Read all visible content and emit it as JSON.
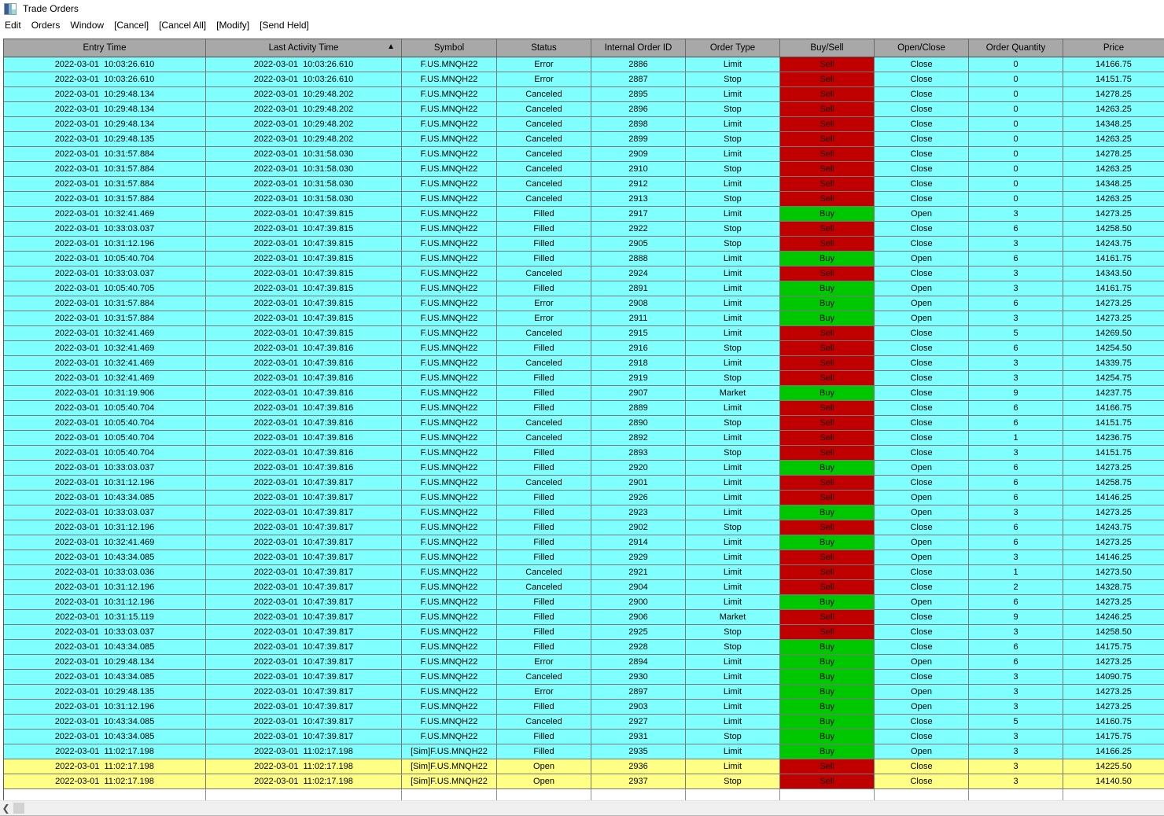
{
  "window": {
    "title": "Trade Orders"
  },
  "menu": {
    "items": [
      "Edit",
      "Orders",
      "Window",
      "[Cancel]",
      "[Cancel All]",
      "[Modify]",
      "[Send Held]"
    ]
  },
  "colors": {
    "row_cyan": "#80FFFF",
    "row_yellow": "#FFFF85",
    "sell_red": "#C00000",
    "buy_green": "#00C800",
    "header_gray": "#A8A8A8"
  },
  "table": {
    "columns": [
      "Entry Time",
      "Last Activity Time",
      "Symbol",
      "Status",
      "Internal Order ID",
      "Order Type",
      "Buy/Sell",
      "Open/Close",
      "Order Quantity",
      "Price"
    ],
    "sort": {
      "column": "Last Activity Time",
      "direction": "ascending",
      "indicator": "▲"
    },
    "row_fields": [
      "entry_time",
      "last_activity_time",
      "symbol",
      "status",
      "internal_order_id",
      "order_type",
      "buy_sell",
      "open_close",
      "order_quantity",
      "price",
      "row_highlight"
    ],
    "rows": [
      [
        "2022-03-01  10:03:26.610",
        "2022-03-01  10:03:26.610",
        "F.US.MNQH22",
        "Error",
        "2886",
        "Limit",
        "Sell",
        "Close",
        "0",
        "14166.75",
        "cyan"
      ],
      [
        "2022-03-01  10:03:26.610",
        "2022-03-01  10:03:26.610",
        "F.US.MNQH22",
        "Error",
        "2887",
        "Stop",
        "Sell",
        "Close",
        "0",
        "14151.75",
        "cyan"
      ],
      [
        "2022-03-01  10:29:48.134",
        "2022-03-01  10:29:48.202",
        "F.US.MNQH22",
        "Canceled",
        "2895",
        "Limit",
        "Sell",
        "Close",
        "0",
        "14278.25",
        "cyan"
      ],
      [
        "2022-03-01  10:29:48.134",
        "2022-03-01  10:29:48.202",
        "F.US.MNQH22",
        "Canceled",
        "2896",
        "Stop",
        "Sell",
        "Close",
        "0",
        "14263.25",
        "cyan"
      ],
      [
        "2022-03-01  10:29:48.134",
        "2022-03-01  10:29:48.202",
        "F.US.MNQH22",
        "Canceled",
        "2898",
        "Limit",
        "Sell",
        "Close",
        "0",
        "14348.25",
        "cyan"
      ],
      [
        "2022-03-01  10:29:48.135",
        "2022-03-01  10:29:48.202",
        "F.US.MNQH22",
        "Canceled",
        "2899",
        "Stop",
        "Sell",
        "Close",
        "0",
        "14263.25",
        "cyan"
      ],
      [
        "2022-03-01  10:31:57.884",
        "2022-03-01  10:31:58.030",
        "F.US.MNQH22",
        "Canceled",
        "2909",
        "Limit",
        "Sell",
        "Close",
        "0",
        "14278.25",
        "cyan"
      ],
      [
        "2022-03-01  10:31:57.884",
        "2022-03-01  10:31:58.030",
        "F.US.MNQH22",
        "Canceled",
        "2910",
        "Stop",
        "Sell",
        "Close",
        "0",
        "14263.25",
        "cyan"
      ],
      [
        "2022-03-01  10:31:57.884",
        "2022-03-01  10:31:58.030",
        "F.US.MNQH22",
        "Canceled",
        "2912",
        "Limit",
        "Sell",
        "Close",
        "0",
        "14348.25",
        "cyan"
      ],
      [
        "2022-03-01  10:31:57.884",
        "2022-03-01  10:31:58.030",
        "F.US.MNQH22",
        "Canceled",
        "2913",
        "Stop",
        "Sell",
        "Close",
        "0",
        "14263.25",
        "cyan"
      ],
      [
        "2022-03-01  10:32:41.469",
        "2022-03-01  10:47:39.815",
        "F.US.MNQH22",
        "Filled",
        "2917",
        "Limit",
        "Buy",
        "Open",
        "3",
        "14273.25",
        "cyan"
      ],
      [
        "2022-03-01  10:33:03.037",
        "2022-03-01  10:47:39.815",
        "F.US.MNQH22",
        "Filled",
        "2922",
        "Stop",
        "Sell",
        "Close",
        "6",
        "14258.50",
        "cyan"
      ],
      [
        "2022-03-01  10:31:12.196",
        "2022-03-01  10:47:39.815",
        "F.US.MNQH22",
        "Filled",
        "2905",
        "Stop",
        "Sell",
        "Close",
        "3",
        "14243.75",
        "cyan"
      ],
      [
        "2022-03-01  10:05:40.704",
        "2022-03-01  10:47:39.815",
        "F.US.MNQH22",
        "Filled",
        "2888",
        "Limit",
        "Buy",
        "Open",
        "6",
        "14161.75",
        "cyan"
      ],
      [
        "2022-03-01  10:33:03.037",
        "2022-03-01  10:47:39.815",
        "F.US.MNQH22",
        "Canceled",
        "2924",
        "Limit",
        "Sell",
        "Close",
        "3",
        "14343.50",
        "cyan"
      ],
      [
        "2022-03-01  10:05:40.705",
        "2022-03-01  10:47:39.815",
        "F.US.MNQH22",
        "Filled",
        "2891",
        "Limit",
        "Buy",
        "Open",
        "3",
        "14161.75",
        "cyan"
      ],
      [
        "2022-03-01  10:31:57.884",
        "2022-03-01  10:47:39.815",
        "F.US.MNQH22",
        "Error",
        "2908",
        "Limit",
        "Buy",
        "Open",
        "6",
        "14273.25",
        "cyan"
      ],
      [
        "2022-03-01  10:31:57.884",
        "2022-03-01  10:47:39.815",
        "F.US.MNQH22",
        "Error",
        "2911",
        "Limit",
        "Buy",
        "Open",
        "3",
        "14273.25",
        "cyan"
      ],
      [
        "2022-03-01  10:32:41.469",
        "2022-03-01  10:47:39.815",
        "F.US.MNQH22",
        "Canceled",
        "2915",
        "Limit",
        "Sell",
        "Close",
        "5",
        "14269.50",
        "cyan"
      ],
      [
        "2022-03-01  10:32:41.469",
        "2022-03-01  10:47:39.816",
        "F.US.MNQH22",
        "Filled",
        "2916",
        "Stop",
        "Sell",
        "Close",
        "6",
        "14254.50",
        "cyan"
      ],
      [
        "2022-03-01  10:32:41.469",
        "2022-03-01  10:47:39.816",
        "F.US.MNQH22",
        "Canceled",
        "2918",
        "Limit",
        "Sell",
        "Close",
        "3",
        "14339.75",
        "cyan"
      ],
      [
        "2022-03-01  10:32:41.469",
        "2022-03-01  10:47:39.816",
        "F.US.MNQH22",
        "Filled",
        "2919",
        "Stop",
        "Sell",
        "Close",
        "3",
        "14254.75",
        "cyan"
      ],
      [
        "2022-03-01  10:31:19.906",
        "2022-03-01  10:47:39.816",
        "F.US.MNQH22",
        "Filled",
        "2907",
        "Market",
        "Buy",
        "Close",
        "9",
        "14237.75",
        "cyan"
      ],
      [
        "2022-03-01  10:05:40.704",
        "2022-03-01  10:47:39.816",
        "F.US.MNQH22",
        "Filled",
        "2889",
        "Limit",
        "Sell",
        "Close",
        "6",
        "14166.75",
        "cyan"
      ],
      [
        "2022-03-01  10:05:40.704",
        "2022-03-01  10:47:39.816",
        "F.US.MNQH22",
        "Canceled",
        "2890",
        "Stop",
        "Sell",
        "Close",
        "6",
        "14151.75",
        "cyan"
      ],
      [
        "2022-03-01  10:05:40.704",
        "2022-03-01  10:47:39.816",
        "F.US.MNQH22",
        "Canceled",
        "2892",
        "Limit",
        "Sell",
        "Close",
        "1",
        "14236.75",
        "cyan"
      ],
      [
        "2022-03-01  10:05:40.704",
        "2022-03-01  10:47:39.816",
        "F.US.MNQH22",
        "Filled",
        "2893",
        "Stop",
        "Sell",
        "Close",
        "3",
        "14151.75",
        "cyan"
      ],
      [
        "2022-03-01  10:33:03.037",
        "2022-03-01  10:47:39.816",
        "F.US.MNQH22",
        "Filled",
        "2920",
        "Limit",
        "Buy",
        "Open",
        "6",
        "14273.25",
        "cyan"
      ],
      [
        "2022-03-01  10:31:12.196",
        "2022-03-01  10:47:39.817",
        "F.US.MNQH22",
        "Canceled",
        "2901",
        "Limit",
        "Sell",
        "Close",
        "6",
        "14258.75",
        "cyan"
      ],
      [
        "2022-03-01  10:43:34.085",
        "2022-03-01  10:47:39.817",
        "F.US.MNQH22",
        "Filled",
        "2926",
        "Limit",
        "Sell",
        "Open",
        "6",
        "14146.25",
        "cyan"
      ],
      [
        "2022-03-01  10:33:03.037",
        "2022-03-01  10:47:39.817",
        "F.US.MNQH22",
        "Filled",
        "2923",
        "Limit",
        "Buy",
        "Open",
        "3",
        "14273.25",
        "cyan"
      ],
      [
        "2022-03-01  10:31:12.196",
        "2022-03-01  10:47:39.817",
        "F.US.MNQH22",
        "Filled",
        "2902",
        "Stop",
        "Sell",
        "Close",
        "6",
        "14243.75",
        "cyan"
      ],
      [
        "2022-03-01  10:32:41.469",
        "2022-03-01  10:47:39.817",
        "F.US.MNQH22",
        "Filled",
        "2914",
        "Limit",
        "Buy",
        "Open",
        "6",
        "14273.25",
        "cyan"
      ],
      [
        "2022-03-01  10:43:34.085",
        "2022-03-01  10:47:39.817",
        "F.US.MNQH22",
        "Filled",
        "2929",
        "Limit",
        "Sell",
        "Open",
        "3",
        "14146.25",
        "cyan"
      ],
      [
        "2022-03-01  10:33:03.036",
        "2022-03-01  10:47:39.817",
        "F.US.MNQH22",
        "Canceled",
        "2921",
        "Limit",
        "Sell",
        "Close",
        "1",
        "14273.50",
        "cyan"
      ],
      [
        "2022-03-01  10:31:12.196",
        "2022-03-01  10:47:39.817",
        "F.US.MNQH22",
        "Canceled",
        "2904",
        "Limit",
        "Sell",
        "Close",
        "2",
        "14328.75",
        "cyan"
      ],
      [
        "2022-03-01  10:31:12.196",
        "2022-03-01  10:47:39.817",
        "F.US.MNQH22",
        "Filled",
        "2900",
        "Limit",
        "Buy",
        "Open",
        "6",
        "14273.25",
        "cyan"
      ],
      [
        "2022-03-01  10:31:15.119",
        "2022-03-01  10:47:39.817",
        "F.US.MNQH22",
        "Filled",
        "2906",
        "Market",
        "Sell",
        "Close",
        "9",
        "14246.25",
        "cyan"
      ],
      [
        "2022-03-01  10:33:03.037",
        "2022-03-01  10:47:39.817",
        "F.US.MNQH22",
        "Filled",
        "2925",
        "Stop",
        "Sell",
        "Close",
        "3",
        "14258.50",
        "cyan"
      ],
      [
        "2022-03-01  10:43:34.085",
        "2022-03-01  10:47:39.817",
        "F.US.MNQH22",
        "Filled",
        "2928",
        "Stop",
        "Buy",
        "Close",
        "6",
        "14175.75",
        "cyan"
      ],
      [
        "2022-03-01  10:29:48.134",
        "2022-03-01  10:47:39.817",
        "F.US.MNQH22",
        "Error",
        "2894",
        "Limit",
        "Buy",
        "Open",
        "6",
        "14273.25",
        "cyan"
      ],
      [
        "2022-03-01  10:43:34.085",
        "2022-03-01  10:47:39.817",
        "F.US.MNQH22",
        "Canceled",
        "2930",
        "Limit",
        "Buy",
        "Close",
        "3",
        "14090.75",
        "cyan"
      ],
      [
        "2022-03-01  10:29:48.135",
        "2022-03-01  10:47:39.817",
        "F.US.MNQH22",
        "Error",
        "2897",
        "Limit",
        "Buy",
        "Open",
        "3",
        "14273.25",
        "cyan"
      ],
      [
        "2022-03-01  10:31:12.196",
        "2022-03-01  10:47:39.817",
        "F.US.MNQH22",
        "Filled",
        "2903",
        "Limit",
        "Buy",
        "Open",
        "3",
        "14273.25",
        "cyan"
      ],
      [
        "2022-03-01  10:43:34.085",
        "2022-03-01  10:47:39.817",
        "F.US.MNQH22",
        "Canceled",
        "2927",
        "Limit",
        "Buy",
        "Close",
        "5",
        "14160.75",
        "cyan"
      ],
      [
        "2022-03-01  10:43:34.085",
        "2022-03-01  10:47:39.817",
        "F.US.MNQH22",
        "Filled",
        "2931",
        "Stop",
        "Buy",
        "Close",
        "3",
        "14175.75",
        "cyan"
      ],
      [
        "2022-03-01  11:02:17.198",
        "2022-03-01  11:02:17.198",
        "[Sim]F.US.MNQH22",
        "Filled",
        "2935",
        "Limit",
        "Buy",
        "Open",
        "3",
        "14166.25",
        "cyan"
      ],
      [
        "2022-03-01  11:02:17.198",
        "2022-03-01  11:02:17.198",
        "[Sim]F.US.MNQH22",
        "Open",
        "2936",
        "Limit",
        "Sell",
        "Close",
        "3",
        "14225.50",
        "yellow"
      ],
      [
        "2022-03-01  11:02:17.198",
        "2022-03-01  11:02:17.198",
        "[Sim]F.US.MNQH22",
        "Open",
        "2937",
        "Stop",
        "Sell",
        "Close",
        "3",
        "14140.50",
        "yellow"
      ]
    ]
  },
  "scrollbar": {
    "left_arrow": "❮"
  }
}
